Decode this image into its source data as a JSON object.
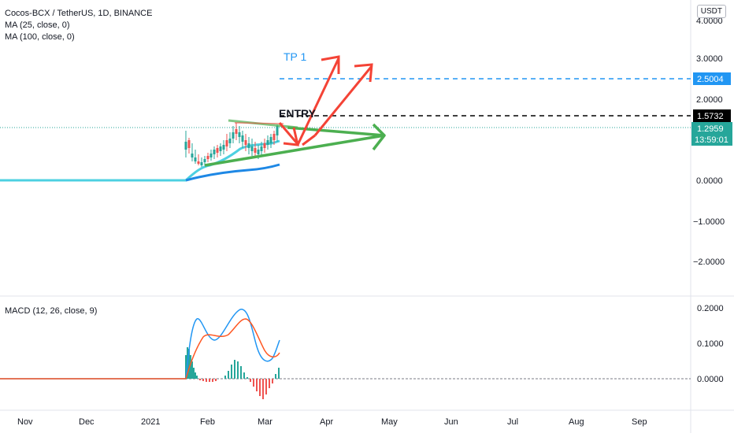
{
  "header": {
    "symbol_title": "Cocos-BCX / TetherUS, 1D, BINANCE",
    "indicators": [
      "MA (25, close, 0)",
      "MA (100, close, 0)"
    ],
    "currency": "USDT"
  },
  "macd": {
    "label": "MACD (12, 26, close, 9)",
    "axis_ticks": [
      "0.2000",
      "0.1000",
      "0.0000"
    ]
  },
  "price_axis": {
    "ticks": [
      "4.0000",
      "3.0000",
      "2.0000",
      "0.0000",
      "−1.0000",
      "−2.0000"
    ],
    "tp_label": "2.5004",
    "entry_label": "1.5732",
    "last_price": "1.2959",
    "countdown": "13:59:01"
  },
  "time_axis": {
    "labels": [
      "Nov",
      "Dec",
      "2021",
      "Feb",
      "Mar",
      "Apr",
      "May",
      "Jun",
      "Jul",
      "Aug",
      "Sep"
    ]
  },
  "annotations": {
    "tp1": "TP 1",
    "entry": "ENTRY"
  },
  "colors": {
    "tp_line": "#2196f3",
    "entry_line": "#000000",
    "last_price_bg": "#26a69a",
    "arrow_red": "#f44336",
    "arrow_green": "#4caf50",
    "ma25": "#4dd0e1",
    "ma100": "#1e88e5",
    "macd_line": "#2196f3",
    "signal_line": "#ff5722"
  },
  "chart_data": {
    "type": "line",
    "price_range": [
      -2.0,
      4.0
    ],
    "price_levels": {
      "tp1": 2.5004,
      "entry": 1.5732,
      "last": 1.2959
    },
    "series": [
      {
        "name": "MA (25, close, 0)"
      },
      {
        "name": "MA (100, close, 0)"
      },
      {
        "name": "MACD (12, 26, close, 9)"
      }
    ]
  }
}
